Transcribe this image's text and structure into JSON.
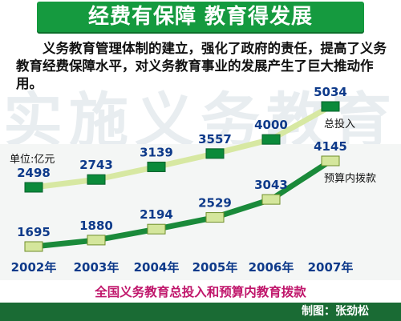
{
  "title": "经费有保障  教育得发展",
  "intro": "义务教育管理体制的建立，强化了政府的责任，提高了义务教育经费保障水平，对义务教育事业的发展产生了巨大推动作用。",
  "watermark": "实施义务教育",
  "caption": "全国义务教育总投入和预算内教育拨款",
  "credit": "制图：张劲松",
  "colors": {
    "title_bg": "#159a3f",
    "total_line": "#d7e8a2",
    "budget_line": "#1a8a3a",
    "marker_dark": "#0b8a3a",
    "marker_light": "#d4e69c",
    "caption": "#c0166b",
    "credit_bg": "#1a6b34"
  },
  "chart_data": {
    "type": "line",
    "unit_label": "单位:亿元",
    "categories": [
      "2002年",
      "2003年",
      "2004年",
      "2005年",
      "2006年",
      "2007年"
    ],
    "series": [
      {
        "name": "总投入",
        "values": [
          2498,
          2743,
          3139,
          3557,
          4000,
          5034
        ]
      },
      {
        "name": "预算内拨款",
        "values": [
          1695,
          1880,
          2194,
          2529,
          3043,
          4145
        ]
      }
    ],
    "grid": false
  }
}
